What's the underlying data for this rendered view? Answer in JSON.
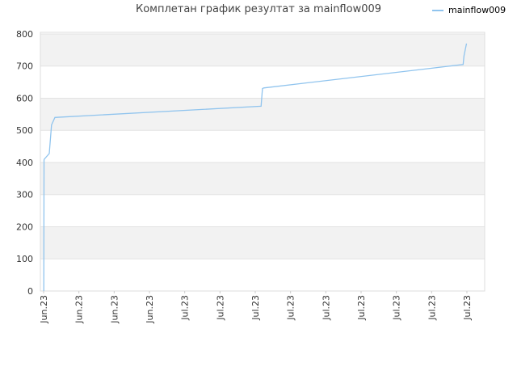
{
  "chart_data": {
    "type": "line",
    "title": "Комплетан график резултат за mainflow009",
    "xlabel": "",
    "ylabel": "",
    "ylim": [
      0,
      800
    ],
    "y_ticks": [
      0,
      100,
      200,
      300,
      400,
      500,
      600,
      700,
      800
    ],
    "x_tick_labels": [
      "Jun.23",
      "Jun.23",
      "Jun.23",
      "Jun.23",
      "Jul.23",
      "Jul.23",
      "Jul.23",
      "Jul.23",
      "Jul.23",
      "Jul.23",
      "Jul.23",
      "Jul.23",
      "Jul.23"
    ],
    "grid": "horizontal alternating bands",
    "legend": "top-right",
    "series": [
      {
        "name": "mainflow009",
        "color": "#90c4ee",
        "x": [
          0,
          0.1,
          0.2,
          2.4,
          3.4,
          4.9,
          95.6,
          96.2,
          96.8,
          184.5,
          184.9,
          186.0
        ],
        "y": [
          0,
          408,
          410,
          428,
          517,
          540,
          575,
          630,
          632,
          705,
          732,
          770
        ]
      }
    ]
  }
}
